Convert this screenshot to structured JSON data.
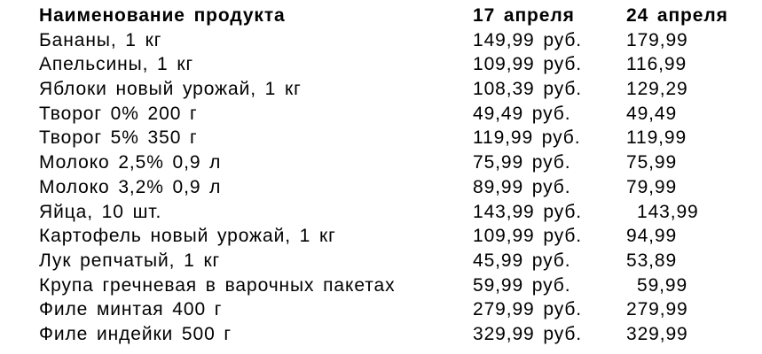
{
  "header": {
    "product": "Наименование продукта",
    "date1": "17 апреля",
    "date2": "24 апреля"
  },
  "rows": [
    {
      "name": "Бананы, 1 кг",
      "p1": "149,99 руб.",
      "p2": "179,99"
    },
    {
      "name": "Апельсины, 1 кг",
      "p1": "109,99 руб.",
      "p2": "116,99"
    },
    {
      "name": "Яблоки новый урожай, 1 кг",
      "p1": "108,39 руб.",
      "p2": "129,29"
    },
    {
      "name": "Творог 0% 200 г",
      "p1": "49,49 руб.",
      "p2": "49,49"
    },
    {
      "name": "Творог 5% 350 г",
      "p1": "119,99 руб.",
      "p2": "119,99"
    },
    {
      "name": "Молоко 2,5% 0,9 л",
      "p1": "75,99 руб.",
      "p2": "75,99"
    },
    {
      "name": "Молоко 3,2% 0,9 л",
      "p1": "89,99 руб.",
      "p2": "79,99"
    },
    {
      "name": "Яйца, 10 шт.",
      "p1": "143,99 руб.",
      "p2": "143,99"
    },
    {
      "name": "Картофель новый урожай, 1 кг",
      "p1": "109,99 руб.",
      "p2": "94,99"
    },
    {
      "name": "Лук репчатый, 1 кг",
      "p1": "45,99 руб.",
      "p2": "53,89"
    },
    {
      "name": "Крупа гречневая в варочных пакетах",
      "p1": "59,99 руб.",
      "p2": "59,99"
    },
    {
      "name": "Филе минтая 400 г",
      "p1": "279,99 руб.",
      "p2": "279,99"
    },
    {
      "name": "Филе индейки 500 г",
      "p1": "329,99 руб.",
      "p2": "329,99"
    }
  ]
}
